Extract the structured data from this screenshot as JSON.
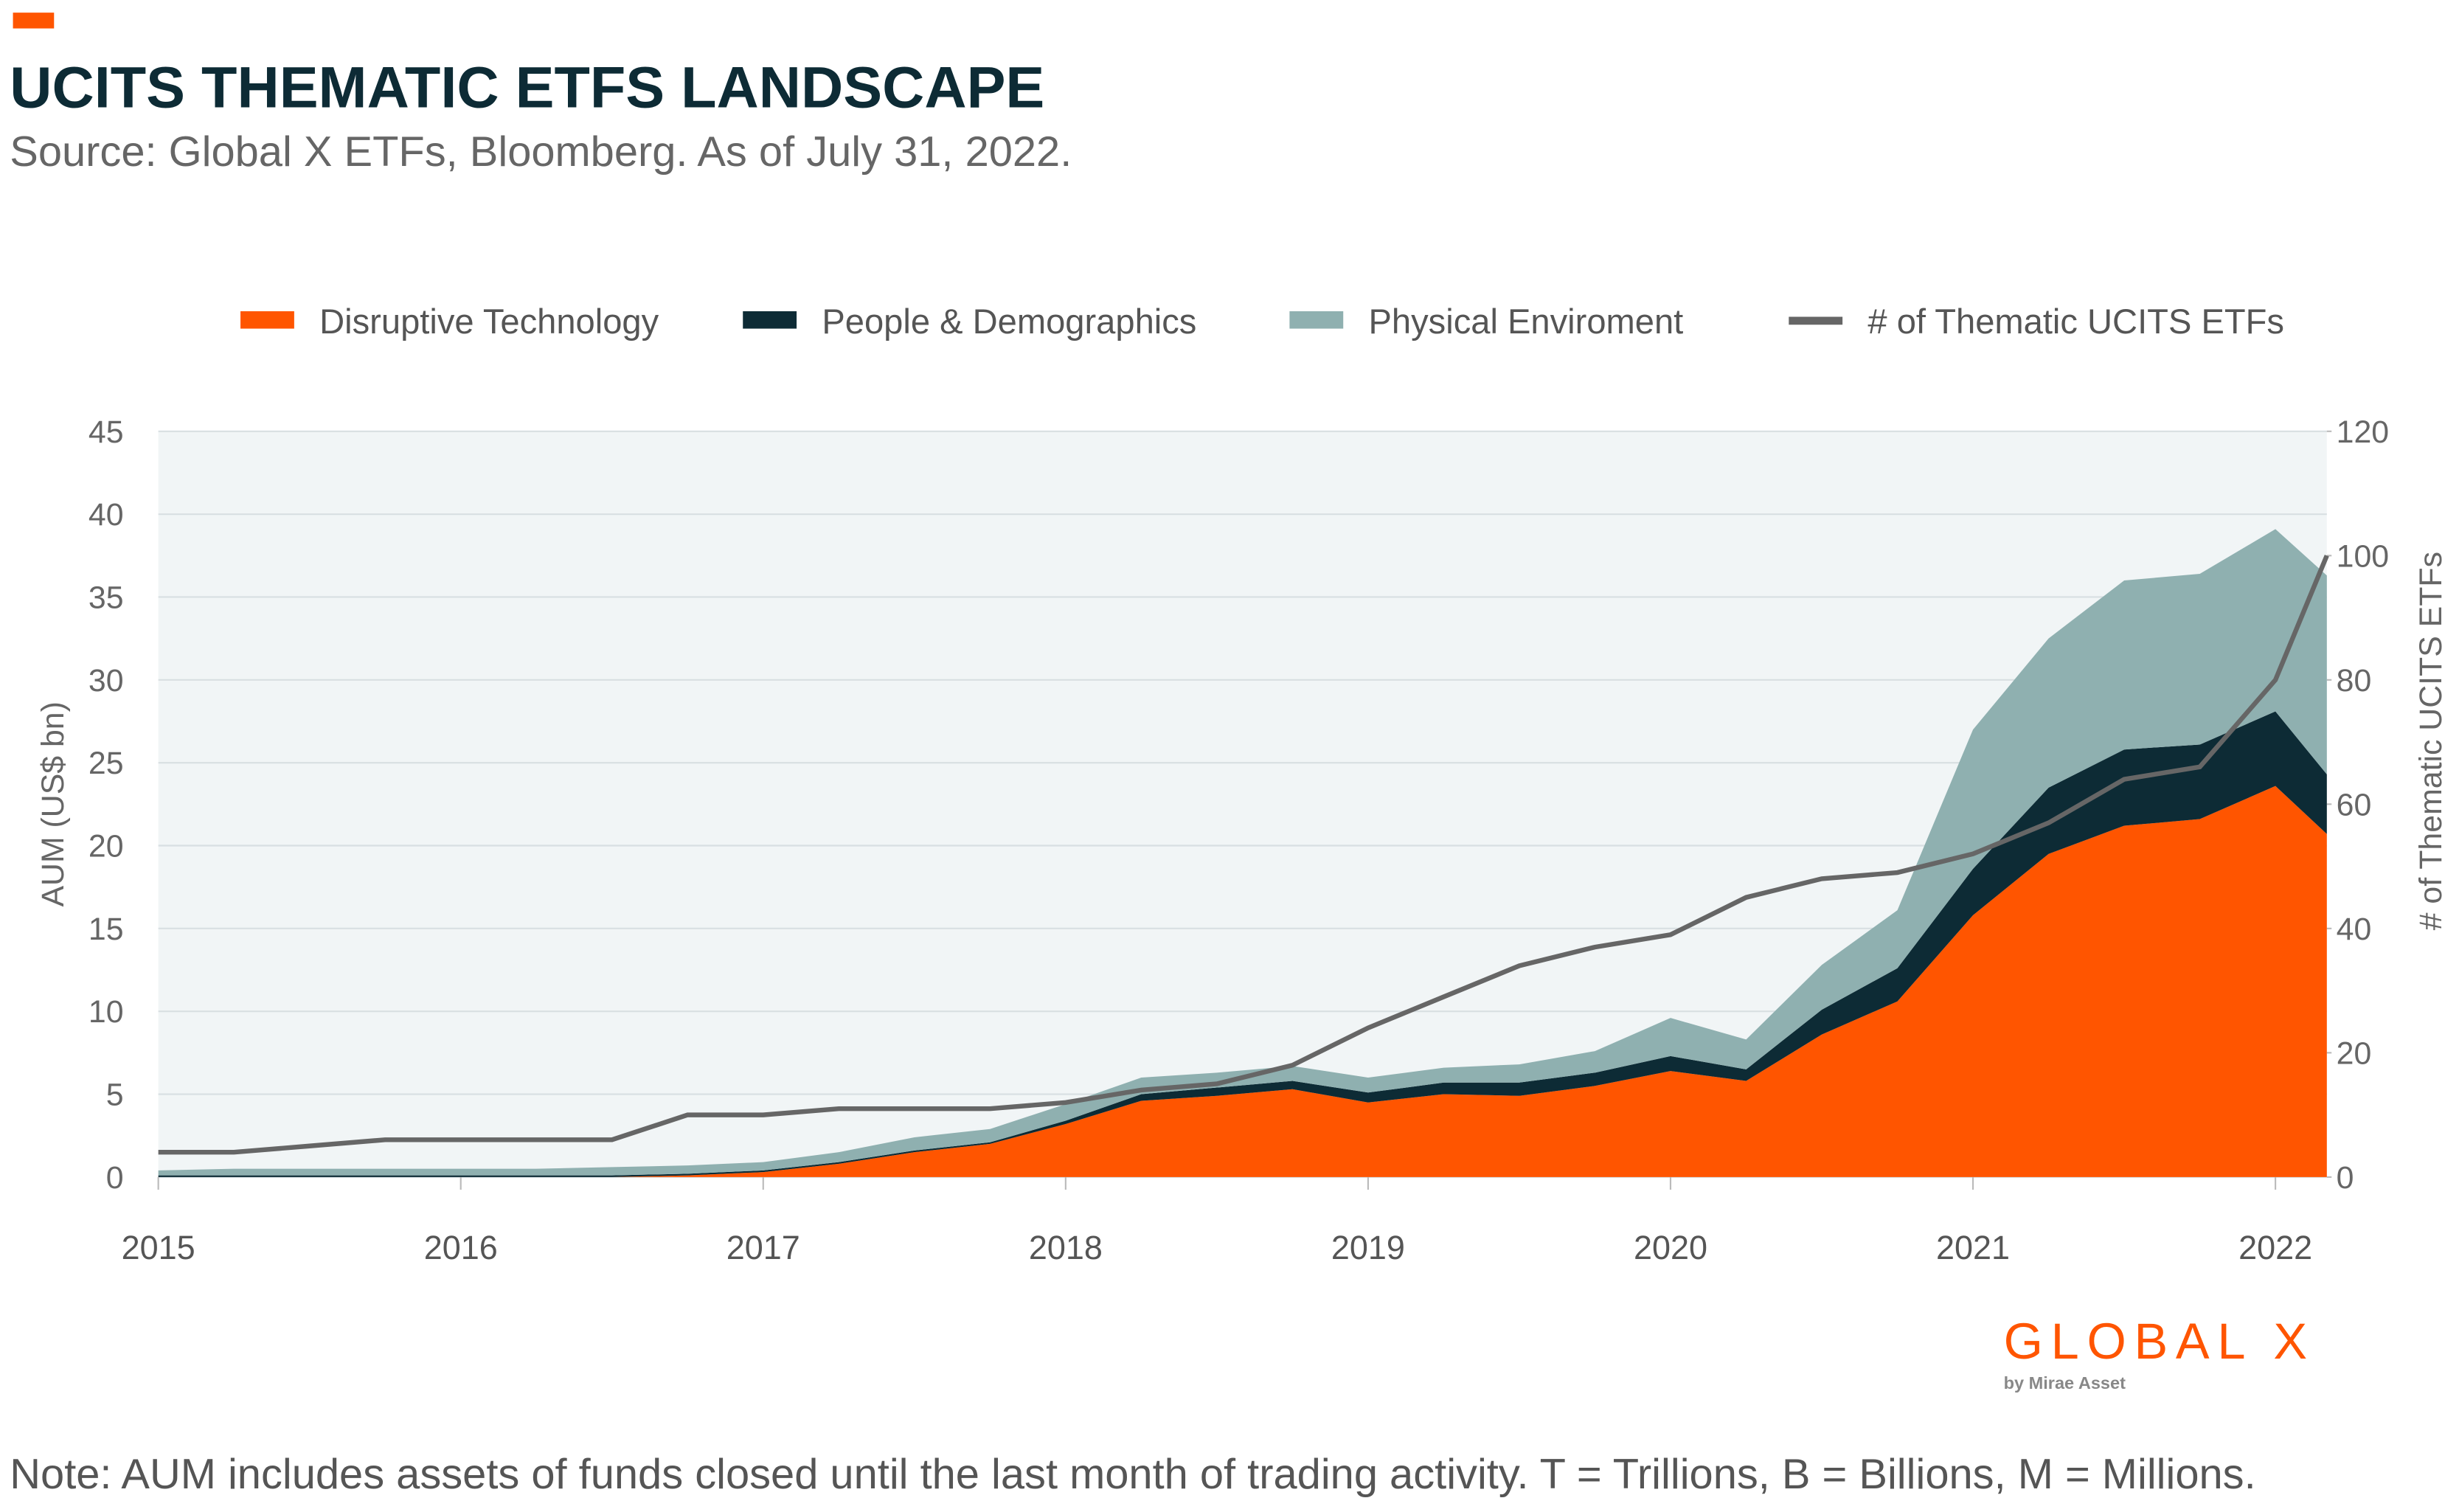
{
  "chart_data": {
    "type": "stacked-area-line",
    "title": "UCITS THEMATIC ETFS LANDSCAPE",
    "subtitle": "Source: Global X ETFs, Bloomberg. As of July 31, 2022.",
    "y_label": "AUM (US$ bn)",
    "y2_label": "# of Thematic UCITS ETFs",
    "note": "Note: AUM includes assets of funds closed until the last month of trading activity. T = Trillions, B = Billions, M = Millions.",
    "logo": "GLOBAL X",
    "logo_sub": "by Mirae Asset",
    "x": [
      2015,
      2015.25,
      2015.5,
      2015.75,
      2016,
      2016.25,
      2016.5,
      2016.75,
      2017,
      2017.25,
      2017.5,
      2017.75,
      2018,
      2018.25,
      2018.5,
      2018.75,
      2019,
      2019.25,
      2019.5,
      2019.75,
      2020,
      2020.25,
      2020.5,
      2020.75,
      2021,
      2021.25,
      2021.5,
      2021.75,
      2022,
      2022.17
    ],
    "xlim": [
      2015,
      2022.17
    ],
    "xticks": [
      2015,
      2016,
      2017,
      2018,
      2019,
      2020,
      2021,
      2022
    ],
    "ylim": [
      0,
      45
    ],
    "yticks": [
      0,
      5,
      10,
      15,
      20,
      25,
      30,
      35,
      40,
      45
    ],
    "y2lim": [
      0,
      120
    ],
    "y2ticks": [
      0,
      20,
      40,
      60,
      80,
      100,
      120
    ],
    "grid": true,
    "series": [
      {
        "name": "Disruptive Technology",
        "color": "#ff5500",
        "kind": "area",
        "values": [
          0,
          0,
          0,
          0,
          0,
          0,
          0,
          0.1,
          0.3,
          0.8,
          1.5,
          2.0,
          3.2,
          4.6,
          4.9,
          5.3,
          4.5,
          5.0,
          4.9,
          5.5,
          6.4,
          5.8,
          8.6,
          10.6,
          15.8,
          19.5,
          21.2,
          21.6,
          23.6,
          20.7
        ]
      },
      {
        "name": "People & Demographics",
        "color": "#0d2b35",
        "kind": "area",
        "values": [
          0.1,
          0.1,
          0.1,
          0.1,
          0.1,
          0.1,
          0.1,
          0.1,
          0.1,
          0.1,
          0.1,
          0.1,
          0.2,
          0.4,
          0.5,
          0.5,
          0.6,
          0.7,
          0.8,
          0.8,
          0.9,
          0.7,
          1.5,
          2.0,
          2.8,
          4.0,
          4.6,
          4.5,
          4.5,
          3.6
        ]
      },
      {
        "name": "Physical Enviroment",
        "color": "#8fb0b0",
        "kind": "area",
        "values": [
          0.3,
          0.4,
          0.4,
          0.4,
          0.4,
          0.4,
          0.5,
          0.5,
          0.5,
          0.6,
          0.8,
          0.8,
          1.0,
          1.0,
          0.9,
          0.9,
          0.9,
          0.9,
          1.1,
          1.3,
          2.3,
          1.8,
          2.7,
          3.5,
          8.4,
          9.0,
          10.2,
          10.3,
          11.0,
          12.0
        ]
      },
      {
        "name": "# of Thematic UCITS ETFs",
        "color": "#666666",
        "kind": "line",
        "axis": "y2",
        "values": [
          4,
          4,
          5,
          6,
          6,
          6,
          6,
          10,
          10,
          11,
          11,
          11,
          12,
          14,
          15,
          18,
          24,
          29,
          34,
          37,
          39,
          45,
          48,
          49,
          52,
          57,
          64,
          66,
          80,
          100
        ]
      }
    ]
  }
}
